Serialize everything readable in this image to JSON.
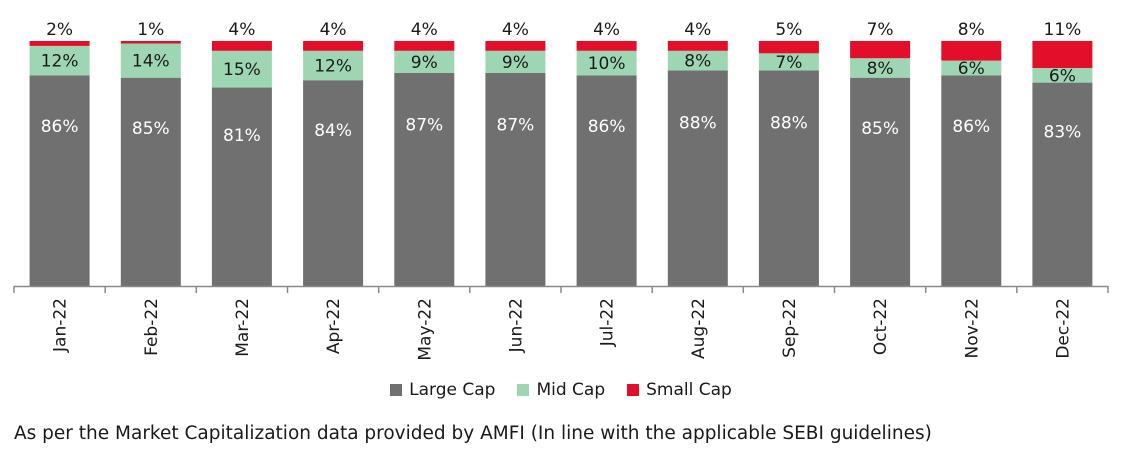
{
  "chart_data": {
    "type": "bar",
    "stacked": true,
    "categories": [
      "Jan-22",
      "Feb-22",
      "Mar-22",
      "Apr-22",
      "May-22",
      "Jun-22",
      "Jul-22",
      "Aug-22",
      "Sep-22",
      "Oct-22",
      "Nov-22",
      "Dec-22"
    ],
    "series": [
      {
        "name": "Large Cap",
        "color": "#707070",
        "values": [
          86,
          85,
          81,
          84,
          87,
          87,
          86,
          88,
          88,
          85,
          86,
          83
        ]
      },
      {
        "name": "Mid Cap",
        "color": "#9ed6b4",
        "values": [
          12,
          14,
          15,
          12,
          9,
          9,
          10,
          8,
          7,
          8,
          6,
          6
        ]
      },
      {
        "name": "Small Cap",
        "color": "#e30f2a",
        "values": [
          2,
          1,
          4,
          4,
          4,
          4,
          4,
          4,
          5,
          7,
          8,
          11
        ]
      }
    ],
    "value_suffix": "%",
    "title": "",
    "xlabel": "",
    "ylabel": "",
    "legend_position": "bottom",
    "grid": false
  },
  "footnote": "As per the Market Capitalization data provided by AMFI (In line with the applicable SEBI guidelines)"
}
